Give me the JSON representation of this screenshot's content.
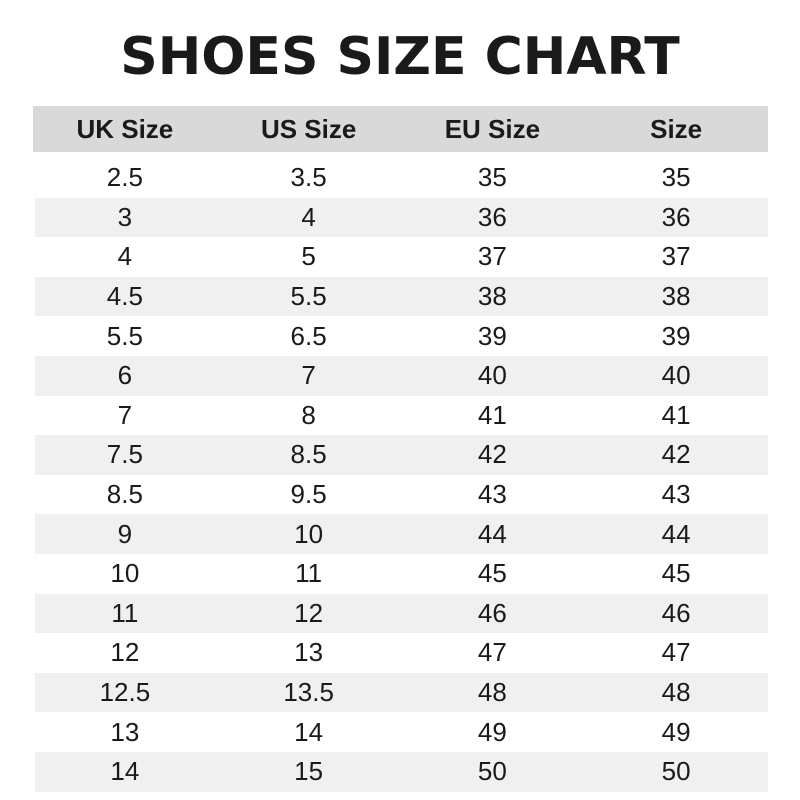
{
  "title": "SHOES SIZE CHART",
  "table": {
    "headers": [
      "UK Size",
      "US Size",
      "EU Size",
      "Size"
    ],
    "rows": [
      [
        "2.5",
        "3.5",
        "35",
        "35"
      ],
      [
        "3",
        "4",
        "36",
        "36"
      ],
      [
        "4",
        "5",
        "37",
        "37"
      ],
      [
        "4.5",
        "5.5",
        "38",
        "38"
      ],
      [
        "5.5",
        "6.5",
        "39",
        "39"
      ],
      [
        "6",
        "7",
        "40",
        "40"
      ],
      [
        "7",
        "8",
        "41",
        "41"
      ],
      [
        "7.5",
        "8.5",
        "42",
        "42"
      ],
      [
        "8.5",
        "9.5",
        "43",
        "43"
      ],
      [
        "9",
        "10",
        "44",
        "44"
      ],
      [
        "10",
        "11",
        "45",
        "45"
      ],
      [
        "11",
        "12",
        "46",
        "46"
      ],
      [
        "12",
        "13",
        "47",
        "47"
      ],
      [
        "12.5",
        "13.5",
        "48",
        "48"
      ],
      [
        "13",
        "14",
        "49",
        "49"
      ],
      [
        "14",
        "15",
        "50",
        "50"
      ]
    ]
  },
  "colors": {
    "header_bg": "#d9d9d9",
    "stripe_bg": "#f0f0f0",
    "text": "#1a1a1a"
  }
}
